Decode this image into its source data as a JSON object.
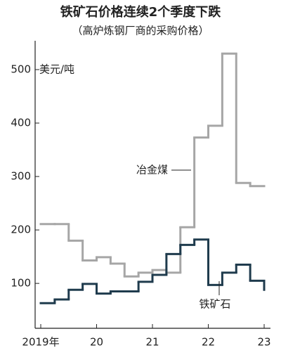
{
  "chart_data": {
    "type": "step",
    "title": "铁矿石价格连续2个季度下跌",
    "subtitle": "（高炉炼钢厂商的采购价格）",
    "y_label": "美元/吨",
    "x": [
      2019,
      2019.25,
      2019.5,
      2019.75,
      2020,
      2020.25,
      2020.5,
      2020.75,
      2021,
      2021.25,
      2021.5,
      2021.75,
      2022,
      2022.25,
      2022.5,
      2022.75,
      2023
    ],
    "series": [
      {
        "name": "冶金煤",
        "color": "#a6a6a6",
        "values": [
          211,
          211,
          180,
          143,
          149,
          137,
          113,
          120,
          125,
          120,
          205,
          373,
          395,
          530,
          288,
          282,
          null
        ]
      },
      {
        "name": "铁矿石",
        "color": "#1f3b4d",
        "values": [
          63,
          70,
          88,
          99,
          81,
          85,
          85,
          103,
          116,
          155,
          172,
          182,
          97,
          120,
          135,
          105,
          88
        ]
      }
    ],
    "xlim": [
      2018.874,
      2023.113
    ],
    "xticks": [
      {
        "value": 2019,
        "label": "2019年"
      },
      {
        "value": 2020,
        "label": "20"
      },
      {
        "value": 2021,
        "label": "21"
      },
      {
        "value": 2022,
        "label": "22"
      },
      {
        "value": 2023,
        "label": "23"
      }
    ],
    "ylim": [
      16,
      575
    ],
    "yticks": [
      100,
      200,
      300,
      400,
      500
    ]
  }
}
